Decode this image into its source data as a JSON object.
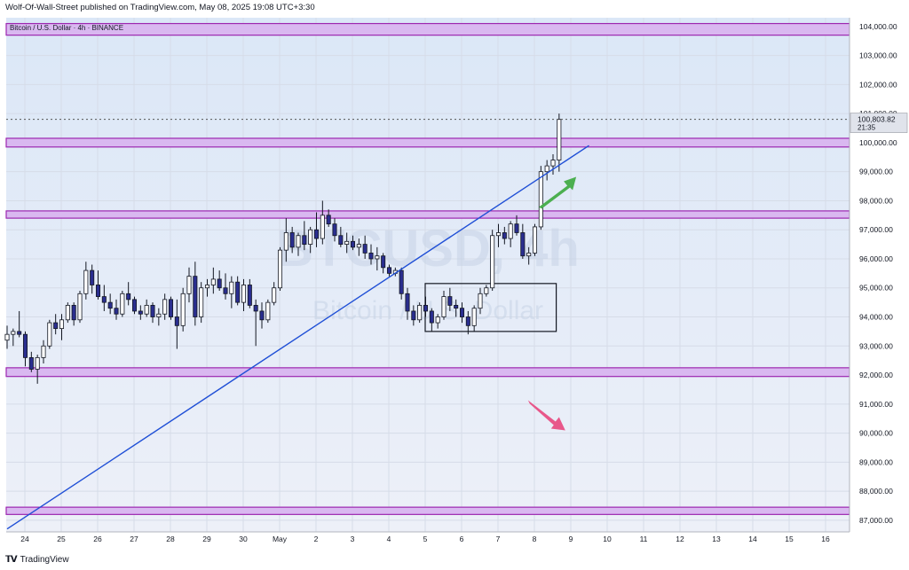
{
  "header": {
    "text": "Wolf-Of-Wall-Street published on TradingView.com, May 08, 2025 19:08 UTC+3:30"
  },
  "footer": {
    "brand": "TradingView"
  },
  "chart_data": {
    "type": "candlestick",
    "symbol_label": "Bitcoin / U.S. Dollar · 4h · BINANCE",
    "watermark_main": "BTCUSD, 4h",
    "watermark_sub": "Bitcoin / U.S. Dollar",
    "ylim": [
      86600,
      104300
    ],
    "y_ticks": [
      "87,000.00",
      "88,000.00",
      "89,000.00",
      "90,000.00",
      "91,000.00",
      "92,000.00",
      "93,000.00",
      "94,000.00",
      "95,000.00",
      "96,000.00",
      "97,000.00",
      "98,000.00",
      "99,000.00",
      "100,000.00",
      "101,000.00",
      "102,000.00",
      "103,000.00",
      "104,000.00"
    ],
    "y_tick_values": [
      87000,
      88000,
      89000,
      90000,
      91000,
      92000,
      93000,
      94000,
      95000,
      96000,
      97000,
      98000,
      99000,
      100000,
      101000,
      102000,
      103000,
      104000
    ],
    "x_ticks": [
      "24",
      "25",
      "26",
      "27",
      "28",
      "29",
      "30",
      "May",
      "2",
      "3",
      "4",
      "5",
      "6",
      "7",
      "8",
      "9",
      "10",
      "11",
      "12",
      "13",
      "14",
      "15",
      "16"
    ],
    "last_price": {
      "value": 100803.82,
      "label": "100,803.82",
      "countdown": "21:35"
    },
    "colors": {
      "up": "#ffffff",
      "down": "#2a2e8f",
      "wick": "#131722",
      "zone_fill": "#d9b8f0",
      "zone_border": "#9c27b0",
      "trendline": "#1f4fd6",
      "arrow_up": "#4caf50",
      "arrow_down": "#e8578a",
      "bg_top": "#dbe7f7",
      "bg_bottom": "#edf0f8"
    },
    "zones": [
      {
        "low": 103700,
        "high": 104100
      },
      {
        "low": 99850,
        "high": 100150
      },
      {
        "low": 97400,
        "high": 97650
      },
      {
        "low": 91950,
        "high": 92250
      },
      {
        "low": 87200,
        "high": 87450
      }
    ],
    "trendline": {
      "start_day": 0,
      "start_price": 86700,
      "end_day": 15.5,
      "end_price": 99900
    },
    "box": {
      "start_day": 11.0,
      "end_day": 14.6,
      "low": 93500,
      "high": 95150
    },
    "arrows": [
      {
        "direction": "up",
        "day": 15.1,
        "price": 98700
      },
      {
        "direction": "down",
        "day": 14.8,
        "price": 90400
      }
    ],
    "candles": [
      [
        93200,
        93700,
        92900,
        93400
      ],
      [
        93400,
        93600,
        93000,
        93500
      ],
      [
        93500,
        94200,
        93300,
        93400
      ],
      [
        93400,
        93500,
        92300,
        92600
      ],
      [
        92600,
        92800,
        92100,
        92200
      ],
      [
        92200,
        92700,
        91700,
        92600
      ],
      [
        92600,
        93200,
        92400,
        93000
      ],
      [
        93000,
        93900,
        92900,
        93800
      ],
      [
        93800,
        94100,
        93400,
        93600
      ],
      [
        93600,
        94100,
        93200,
        93900
      ],
      [
        93900,
        94500,
        93800,
        94400
      ],
      [
        94400,
        94500,
        93700,
        93900
      ],
      [
        93900,
        94900,
        93800,
        94800
      ],
      [
        94800,
        95900,
        94600,
        95600
      ],
      [
        95600,
        95800,
        94800,
        95100
      ],
      [
        95100,
        95600,
        94600,
        94700
      ],
      [
        94700,
        95100,
        94200,
        94500
      ],
      [
        94500,
        94800,
        94100,
        94300
      ],
      [
        94300,
        94600,
        93900,
        94100
      ],
      [
        94100,
        94900,
        94000,
        94800
      ],
      [
        94800,
        95200,
        94400,
        94600
      ],
      [
        94600,
        94700,
        94100,
        94200
      ],
      [
        94200,
        94400,
        93900,
        94100
      ],
      [
        94100,
        94600,
        94000,
        94400
      ],
      [
        94400,
        94500,
        93800,
        94000
      ],
      [
        94000,
        94300,
        93700,
        94100
      ],
      [
        94100,
        94800,
        93900,
        94600
      ],
      [
        94600,
        94700,
        93900,
        94000
      ],
      [
        94000,
        94600,
        92900,
        93700
      ],
      [
        93700,
        95000,
        93500,
        94800
      ],
      [
        94800,
        95700,
        94500,
        95400
      ],
      [
        95400,
        95900,
        93700,
        94000
      ],
      [
        94000,
        95200,
        93800,
        95000
      ],
      [
        95000,
        95300,
        94700,
        95100
      ],
      [
        95100,
        95700,
        94800,
        95300
      ],
      [
        95300,
        95600,
        94900,
        95000
      ],
      [
        95000,
        95500,
        94600,
        94800
      ],
      [
        94800,
        95400,
        94300,
        95200
      ],
      [
        95200,
        95400,
        94400,
        94500
      ],
      [
        94500,
        95300,
        94200,
        95100
      ],
      [
        95100,
        95300,
        94300,
        94400
      ],
      [
        94400,
        94600,
        93000,
        94200
      ],
      [
        94200,
        94500,
        93600,
        93900
      ],
      [
        93900,
        94600,
        93800,
        94500
      ],
      [
        94500,
        95200,
        94400,
        95000
      ],
      [
        95000,
        96400,
        94900,
        96300
      ],
      [
        96300,
        97400,
        95900,
        96900
      ],
      [
        96900,
        97100,
        96200,
        96400
      ],
      [
        96400,
        96900,
        96100,
        96800
      ],
      [
        96800,
        97300,
        96300,
        96500
      ],
      [
        96500,
        97100,
        96200,
        97000
      ],
      [
        97000,
        97600,
        96400,
        96700
      ],
      [
        96700,
        98000,
        96500,
        97500
      ],
      [
        97500,
        97700,
        97100,
        97200
      ],
      [
        97200,
        97400,
        96600,
        96800
      ],
      [
        96800,
        97100,
        96400,
        96500
      ],
      [
        96500,
        96900,
        96200,
        96600
      ],
      [
        96600,
        96800,
        96300,
        96400
      ],
      [
        96400,
        96700,
        96100,
        96500
      ],
      [
        96500,
        96800,
        96000,
        96200
      ],
      [
        96200,
        96500,
        95800,
        96000
      ],
      [
        96000,
        96400,
        95600,
        96100
      ],
      [
        96100,
        96200,
        95500,
        95700
      ],
      [
        95700,
        95800,
        95400,
        95500
      ],
      [
        95500,
        95700,
        95400,
        95600
      ],
      [
        95600,
        95700,
        94600,
        94800
      ],
      [
        94800,
        95000,
        93900,
        94200
      ],
      [
        94200,
        94400,
        93700,
        93900
      ],
      [
        93900,
        94500,
        93800,
        94400
      ],
      [
        94400,
        94700,
        94000,
        94200
      ],
      [
        94200,
        94300,
        93500,
        93800
      ],
      [
        93800,
        94100,
        93600,
        94000
      ],
      [
        94000,
        94900,
        93900,
        94700
      ],
      [
        94700,
        95000,
        94200,
        94400
      ],
      [
        94400,
        94600,
        94000,
        94300
      ],
      [
        94300,
        94500,
        93800,
        94000
      ],
      [
        94000,
        94200,
        93400,
        93700
      ],
      [
        93700,
        94400,
        93500,
        94300
      ],
      [
        94300,
        95000,
        94100,
        94800
      ],
      [
        94800,
        95100,
        94700,
        95000
      ],
      [
        95000,
        97000,
        94900,
        96800
      ],
      [
        96800,
        97200,
        96400,
        96900
      ],
      [
        96900,
        97100,
        96500,
        96700
      ],
      [
        96700,
        97300,
        96400,
        97200
      ],
      [
        97200,
        97500,
        96800,
        96900
      ],
      [
        96900,
        97200,
        96000,
        96100
      ],
      [
        96100,
        96400,
        95800,
        96200
      ],
      [
        96200,
        97200,
        96100,
        97100
      ],
      [
        97100,
        99200,
        97000,
        99000
      ],
      [
        99000,
        99400,
        98700,
        99200
      ],
      [
        99200,
        99600,
        98900,
        99400
      ],
      [
        99400,
        101000,
        99000,
        100800
      ]
    ],
    "candles_per_day": 6
  }
}
